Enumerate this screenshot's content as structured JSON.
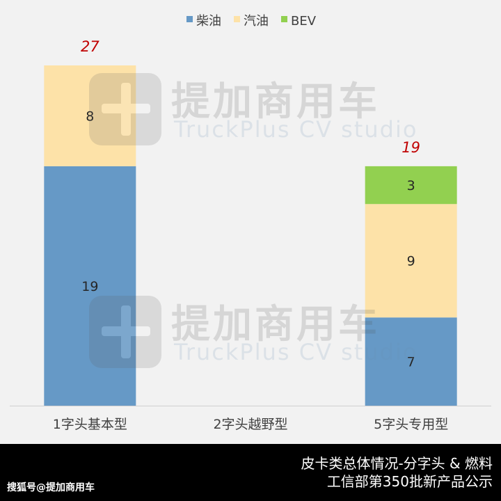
{
  "chart_data": {
    "type": "bar",
    "stacked": true,
    "categories": [
      "1字头基本型",
      "2字头越野型",
      "5字头专用型"
    ],
    "series": [
      {
        "name": "柴油",
        "color": "#6699c6",
        "values": [
          19,
          0,
          7
        ]
      },
      {
        "name": "汽油",
        "color": "#fde2a8",
        "values": [
          8,
          0,
          9
        ]
      },
      {
        "name": "BEV",
        "color": "#92d050",
        "values": [
          0,
          0,
          3
        ]
      }
    ],
    "totals": [
      "27",
      "",
      "19"
    ],
    "total_label_color": "#c00000",
    "ylim": [
      0,
      27
    ],
    "legend": "top-center",
    "grid": false
  },
  "watermark": {
    "cn": "提加商用车",
    "en": "TruckPlus CV studio"
  },
  "footer": {
    "caption_line1": "皮卡类总体情况-分字头 & 燃料",
    "caption_line2": "工信部第350批新产品公示",
    "source": "搜狐号@提加商用车"
  }
}
